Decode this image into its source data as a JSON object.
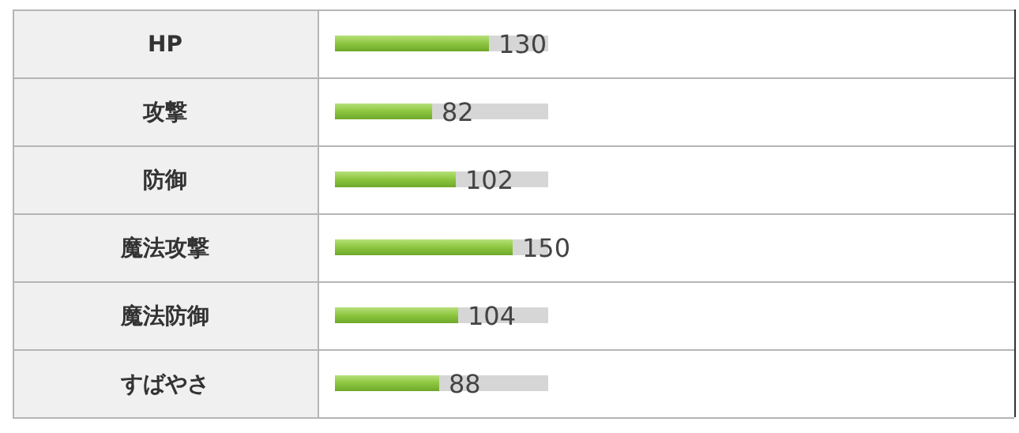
{
  "chart_data": {
    "type": "bar",
    "orientation": "horizontal",
    "categories": [
      "HP",
      "攻撃",
      "防御",
      "魔法攻撃",
      "魔法防御",
      "すばやさ"
    ],
    "series": [
      {
        "color": "#8cc63f",
        "values": [
          130,
          82,
          102,
          150,
          104,
          88
        ]
      }
    ],
    "xlim": [
      0,
      180
    ],
    "data_labels": true,
    "tick_labels": "y"
  }
}
